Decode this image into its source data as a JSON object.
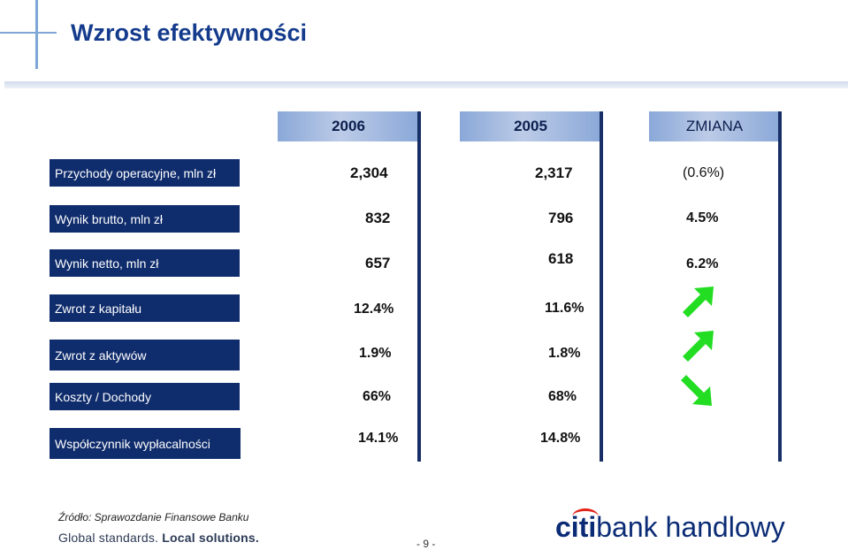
{
  "title": "Wzrost efektywności",
  "columns": [
    "2006",
    "2005",
    "ZMIANA"
  ],
  "rows": [
    {
      "label": "Przychody operacyjne, mln zł",
      "v2006": "2,304",
      "v2005": "2,317",
      "change": "(0.6%)"
    },
    {
      "label": "Wynik brutto, mln zł",
      "v2006": "832",
      "v2005": "796",
      "change": "4.5%"
    },
    {
      "label": "Wynik netto, mln zł",
      "v2006": "657",
      "v2005": "618",
      "change": "6.2%"
    },
    {
      "label": "Zwrot z kapitału",
      "v2006": "12.4%",
      "v2005": "11.6%",
      "change_icon": "arrow-up-right-icon"
    },
    {
      "label": "Zwrot z aktywów",
      "v2006": "1.9%",
      "v2005": "1.8%",
      "change_icon": "arrow-up-right-icon"
    },
    {
      "label": "Koszty / Dochody",
      "v2006": "66%",
      "v2005": "68%",
      "change_icon": "arrow-down-right-icon"
    },
    {
      "label": "Współczynnik wypłacalności",
      "v2006": "14.1%",
      "v2005": "14.8%"
    }
  ],
  "footer": {
    "source": "Źródło: Sprawozdanie Finansowe Banku",
    "slogan_part1": "Global standards.",
    "slogan_part2": "Local solutions.",
    "page_number": "- 9 -",
    "logo_part1": "citi",
    "logo_part2": "bank handlowy"
  },
  "colors": {
    "title": "#143b8c",
    "label_bg": "#0f2c6c",
    "header_gradient": "#8aa8d8",
    "arrow_green": "#22dd22",
    "logo_blue": "#0a2b75",
    "logo_red": "#e2231a"
  }
}
